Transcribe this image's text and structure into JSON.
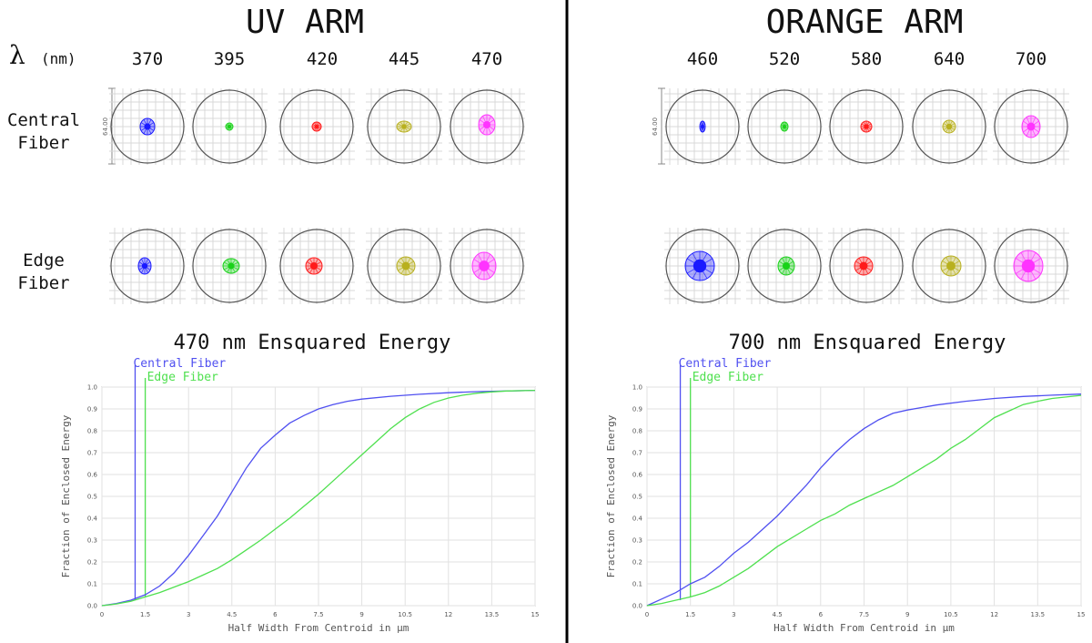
{
  "lambda_label": {
    "symbol": "λ",
    "unit": "(nm)"
  },
  "row_labels": {
    "central": [
      "Central",
      "Fiber"
    ],
    "edge": [
      "Edge",
      "Fiber"
    ]
  },
  "scale_label": "64.00",
  "arms": [
    {
      "title": "UV ARM",
      "wavelengths": [
        "370",
        "395",
        "420",
        "445",
        "470"
      ],
      "spot_colors": [
        "#1a1aff",
        "#19d219",
        "#ff1a1a",
        "#b8b01e",
        "#ff33ff"
      ],
      "ee_title": "470 nm Ensquared Energy"
    },
    {
      "title": "ORANGE ARM",
      "wavelengths": [
        "460",
        "520",
        "580",
        "640",
        "700"
      ],
      "spot_colors": [
        "#1a1aff",
        "#19d219",
        "#ff1a1a",
        "#b8b01e",
        "#ff33ff"
      ],
      "ee_title": "700 nm Ensquared Energy"
    }
  ],
  "chart_data": [
    {
      "type": "line",
      "title": "470 nm Ensquared Energy",
      "xlabel": "Half Width From Centroid in µm",
      "ylabel": "Fraction of Enclosed Energy",
      "xlim": [
        0,
        15
      ],
      "ylim": [
        0,
        1
      ],
      "xticks": [
        "0",
        "1.5",
        "3",
        "4.5",
        "6",
        "7.5",
        "9",
        "10.5",
        "12",
        "13.5",
        "15"
      ],
      "yticks": [
        "0.0",
        "0.1",
        "0.2",
        "0.3",
        "0.4",
        "0.5",
        "0.6",
        "0.7",
        "0.8",
        "0.9",
        "1.0"
      ],
      "grid": true,
      "legend": [
        {
          "name": "Central Fiber",
          "color": "#5050f0",
          "marker_x": 1.15
        },
        {
          "name": "Edge Fiber",
          "color": "#4fe04f",
          "marker_x": 1.5
        }
      ],
      "series": [
        {
          "name": "Central Fiber",
          "color": "#5050f0",
          "x": [
            0,
            0.5,
            1,
            1.5,
            2,
            2.5,
            3,
            3.5,
            4,
            4.5,
            5,
            5.5,
            6,
            6.5,
            7,
            7.5,
            8,
            8.5,
            9,
            10,
            11,
            12,
            13,
            14,
            15
          ],
          "y": [
            0,
            0.01,
            0.025,
            0.05,
            0.09,
            0.15,
            0.23,
            0.32,
            0.41,
            0.52,
            0.63,
            0.72,
            0.78,
            0.835,
            0.87,
            0.9,
            0.92,
            0.935,
            0.945,
            0.958,
            0.967,
            0.974,
            0.979,
            0.982,
            0.985
          ]
        },
        {
          "name": "Edge Fiber",
          "color": "#4fe04f",
          "x": [
            0,
            0.5,
            1,
            1.5,
            2,
            2.5,
            3,
            3.5,
            4,
            4.5,
            5,
            5.5,
            6,
            6.5,
            7,
            7.5,
            8,
            8.5,
            9,
            9.5,
            10,
            10.5,
            11,
            11.5,
            12,
            12.5,
            13,
            13.5,
            14,
            15
          ],
          "y": [
            0,
            0.008,
            0.02,
            0.04,
            0.06,
            0.085,
            0.11,
            0.14,
            0.17,
            0.21,
            0.255,
            0.3,
            0.35,
            0.4,
            0.455,
            0.51,
            0.57,
            0.63,
            0.69,
            0.75,
            0.81,
            0.86,
            0.9,
            0.93,
            0.95,
            0.963,
            0.972,
            0.978,
            0.982,
            0.985
          ]
        }
      ]
    },
    {
      "type": "line",
      "title": "700 nm Ensquared Energy",
      "xlabel": "Half Width From Centroid in µm",
      "ylabel": "Fraction of Enclosed Energy",
      "xlim": [
        0,
        15
      ],
      "ylim": [
        0,
        1
      ],
      "xticks": [
        "0",
        "1.5",
        "3",
        "4.5",
        "6",
        "7.5",
        "9",
        "10.5",
        "12",
        "13.5",
        "15"
      ],
      "yticks": [
        "0.0",
        "0.1",
        "0.2",
        "0.3",
        "0.4",
        "0.5",
        "0.6",
        "0.7",
        "0.8",
        "0.9",
        "1.0"
      ],
      "grid": true,
      "legend": [
        {
          "name": "Central Fiber",
          "color": "#5050f0",
          "marker_x": 1.15
        },
        {
          "name": "Edge Fiber",
          "color": "#4fe04f",
          "marker_x": 1.5
        }
      ],
      "series": [
        {
          "name": "Central Fiber",
          "color": "#5050f0",
          "x": [
            0,
            0.5,
            1,
            1.5,
            2,
            2.5,
            3,
            3.5,
            4,
            4.5,
            5,
            5.5,
            6,
            6.5,
            7,
            7.5,
            8,
            8.5,
            9,
            10,
            11,
            12,
            13,
            14,
            15
          ],
          "y": [
            0,
            0.03,
            0.06,
            0.1,
            0.13,
            0.18,
            0.24,
            0.29,
            0.35,
            0.41,
            0.48,
            0.55,
            0.63,
            0.7,
            0.76,
            0.81,
            0.85,
            0.88,
            0.895,
            0.918,
            0.935,
            0.948,
            0.957,
            0.963,
            0.968
          ]
        },
        {
          "name": "Edge Fiber",
          "color": "#4fe04f",
          "x": [
            0,
            0.5,
            1,
            1.5,
            2,
            2.5,
            3,
            3.5,
            4,
            4.5,
            5,
            5.5,
            6,
            6.5,
            7,
            7.5,
            8,
            8.5,
            9,
            9.5,
            10,
            10.5,
            11,
            11.5,
            12,
            12.5,
            13,
            13.5,
            14,
            15
          ],
          "y": [
            0,
            0.01,
            0.025,
            0.04,
            0.06,
            0.09,
            0.13,
            0.17,
            0.22,
            0.27,
            0.31,
            0.35,
            0.39,
            0.42,
            0.46,
            0.49,
            0.52,
            0.55,
            0.59,
            0.63,
            0.67,
            0.72,
            0.76,
            0.81,
            0.86,
            0.89,
            0.92,
            0.935,
            0.948,
            0.962
          ]
        }
      ]
    }
  ]
}
